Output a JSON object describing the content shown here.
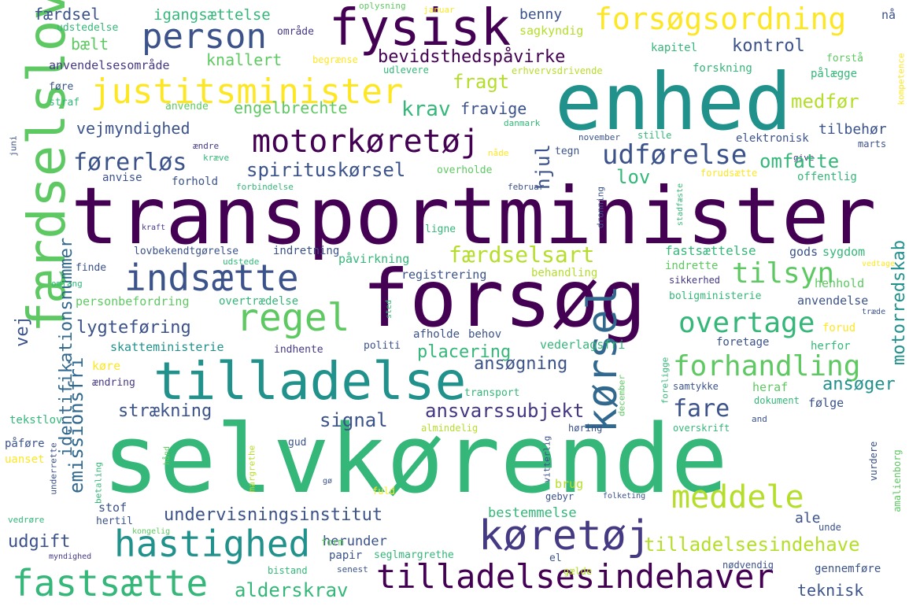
{
  "words": [
    {
      "text": "selvkørende",
      "color": "#35b779"
    },
    {
      "text": "transportminister",
      "color": "#440154"
    },
    {
      "text": "enhed",
      "color": "#21918c"
    },
    {
      "text": "forsøg",
      "color": "#440154"
    },
    {
      "text": "færdselslov",
      "color": "#5ec962"
    },
    {
      "text": "tilladelse",
      "color": "#21918c"
    },
    {
      "text": "fysisk",
      "color": "#440154"
    },
    {
      "text": "forsøgsordning",
      "color": "#fde725"
    },
    {
      "text": "person",
      "color": "#3b528b"
    },
    {
      "text": "justitsminister",
      "color": "#fde725"
    },
    {
      "text": "motorkøretøj",
      "color": "#440154"
    },
    {
      "text": "indsætte",
      "color": "#3b528b"
    },
    {
      "text": "regel",
      "color": "#5ec962"
    },
    {
      "text": "kørsel",
      "color": "#31688e"
    },
    {
      "text": "køretøj",
      "color": "#443983"
    },
    {
      "text": "tilladelsesindehaver",
      "color": "#440154"
    },
    {
      "text": "hastighed",
      "color": "#21918c"
    },
    {
      "text": "fastsætte",
      "color": "#35b779"
    },
    {
      "text": "meddele",
      "color": "#b5de2b"
    },
    {
      "text": "forhandling",
      "color": "#5ec962"
    },
    {
      "text": "overtage",
      "color": "#35b779"
    },
    {
      "text": "tilsyn",
      "color": "#5ec962"
    },
    {
      "text": "udførelse",
      "color": "#3b528b"
    },
    {
      "text": "færdselsart",
      "color": "#b5de2b"
    },
    {
      "text": "førerløs",
      "color": "#3b528b"
    },
    {
      "text": "spirituskørsel",
      "color": "#3b528b"
    },
    {
      "text": "undervisningsinstitut",
      "color": "#3b528b"
    },
    {
      "text": "tilladelsesindehave",
      "color": "#b5de2b"
    },
    {
      "text": "ansvarssubjekt",
      "color": "#443983"
    },
    {
      "text": "identifikationsnummer",
      "color": "#31688e"
    },
    {
      "text": "emissionsfri",
      "color": "#31688e"
    },
    {
      "text": "motorredskab",
      "color": "#21918c"
    },
    {
      "text": "bevidsthedspåvirke",
      "color": "#440154"
    },
    {
      "text": "færdsel",
      "color": "#3b528b"
    },
    {
      "text": "igangsættelse",
      "color": "#35b779"
    },
    {
      "text": "benny",
      "color": "#3b528b"
    },
    {
      "text": "sagkyndig",
      "color": "#b5de2b"
    },
    {
      "text": "udstedelse",
      "color": "#35b779"
    },
    {
      "text": "område",
      "color": "#443983"
    },
    {
      "text": "bælt",
      "color": "#5ec962"
    },
    {
      "text": "knallert",
      "color": "#5ec962"
    },
    {
      "text": "kontrol",
      "color": "#3b528b"
    },
    {
      "text": "kapitel",
      "color": "#35b779"
    },
    {
      "text": "anvendelsesområde",
      "color": "#443983"
    },
    {
      "text": "begrænse",
      "color": "#fde725"
    },
    {
      "text": "udlevere",
      "color": "#35b779"
    },
    {
      "text": "erhvervsdrivende",
      "color": "#b5de2b"
    },
    {
      "text": "forskning",
      "color": "#35b779"
    },
    {
      "text": "forstå",
      "color": "#5ec962"
    },
    {
      "text": "pålægge",
      "color": "#35b779"
    },
    {
      "text": "kompetence",
      "color": "#fde725"
    },
    {
      "text": "føre",
      "color": "#3b528b"
    },
    {
      "text": "straf",
      "color": "#35b779"
    },
    {
      "text": "anvende",
      "color": "#5ec962"
    },
    {
      "text": "fragt",
      "color": "#b5de2b"
    },
    {
      "text": "engelbrechte",
      "color": "#5ec962"
    },
    {
      "text": "krav",
      "color": "#35b779"
    },
    {
      "text": "fravige",
      "color": "#3b528b"
    },
    {
      "text": "medfør",
      "color": "#b5de2b"
    },
    {
      "text": "vejmyndighed",
      "color": "#3b528b"
    },
    {
      "text": "hjul",
      "color": "#3b528b"
    },
    {
      "text": "tilbehør",
      "color": "#3b528b"
    },
    {
      "text": "danmark",
      "color": "#35b779"
    },
    {
      "text": "november",
      "color": "#3b528b"
    },
    {
      "text": "stille",
      "color": "#35b779"
    },
    {
      "text": "marts",
      "color": "#3b528b"
    },
    {
      "text": "elektronisk",
      "color": "#3b528b"
    },
    {
      "text": "juni",
      "color": "#3b528b"
    },
    {
      "text": "ændre",
      "color": "#443983"
    },
    {
      "text": "tegn",
      "color": "#3b528b"
    },
    {
      "text": "nåde",
      "color": "#fde725"
    },
    {
      "text": "kræve",
      "color": "#35b779"
    },
    {
      "text": "give",
      "color": "#443983"
    },
    {
      "text": "omfatte",
      "color": "#35b779"
    },
    {
      "text": "lov",
      "color": "#35b779"
    },
    {
      "text": "overholde",
      "color": "#5ec962"
    },
    {
      "text": "forudsætte",
      "color": "#fde725"
    },
    {
      "text": "offentlig",
      "color": "#35b779"
    },
    {
      "text": "anvise",
      "color": "#3b528b"
    },
    {
      "text": "forhold",
      "color": "#3b528b"
    },
    {
      "text": "forbindelse",
      "color": "#35b779"
    },
    {
      "text": "februar",
      "color": "#3b528b"
    },
    {
      "text": "dronning",
      "color": "#3b528b"
    },
    {
      "text": "stadfæste",
      "color": "#35b779"
    },
    {
      "text": "kraft",
      "color": "#443983"
    },
    {
      "text": "ligne",
      "color": "#35b779"
    },
    {
      "text": "vej",
      "color": "#3b528b"
    },
    {
      "text": "lovbekendtgørelse",
      "color": "#3b528b"
    },
    {
      "text": "indretning",
      "color": "#3b528b"
    },
    {
      "text": "udstede",
      "color": "#35b779"
    },
    {
      "text": "påvirkning",
      "color": "#35b779"
    },
    {
      "text": "fastsættelse",
      "color": "#35b779"
    },
    {
      "text": "gods",
      "color": "#3b528b"
    },
    {
      "text": "sygdom",
      "color": "#35b779"
    },
    {
      "text": "indrette",
      "color": "#5ec962"
    },
    {
      "text": "vedtage",
      "color": "#fde725"
    },
    {
      "text": "finde",
      "color": "#3b528b"
    },
    {
      "text": "omfang",
      "color": "#35b779"
    },
    {
      "text": "registrering",
      "color": "#3b528b"
    },
    {
      "text": "behandling",
      "color": "#b5de2b"
    },
    {
      "text": "sikkerhed",
      "color": "#443983"
    },
    {
      "text": "henhold",
      "color": "#5ec962"
    },
    {
      "text": "personbefordring",
      "color": "#5ec962"
    },
    {
      "text": "overtrædelse",
      "color": "#35b779"
    },
    {
      "text": "boligministerie",
      "color": "#35b779"
    },
    {
      "text": "anvendelse",
      "color": "#3b528b"
    },
    {
      "text": "sted",
      "color": "#35b779"
    },
    {
      "text": "træde",
      "color": "#3b528b"
    },
    {
      "text": "lygteføring",
      "color": "#3b528b"
    },
    {
      "text": "afholde",
      "color": "#3b528b"
    },
    {
      "text": "behov",
      "color": "#3b528b"
    },
    {
      "text": "forud",
      "color": "#fde725"
    },
    {
      "text": "foretage",
      "color": "#3b528b"
    },
    {
      "text": "herfor",
      "color": "#35b779"
    },
    {
      "text": "skatteministerie",
      "color": "#21918c"
    },
    {
      "text": "indhente",
      "color": "#443983"
    },
    {
      "text": "politi",
      "color": "#3b528b"
    },
    {
      "text": "placering",
      "color": "#35b779"
    },
    {
      "text": "vederlagsfri",
      "color": "#35b779"
    },
    {
      "text": "køre",
      "color": "#fde725"
    },
    {
      "text": "ændring",
      "color": "#443983"
    },
    {
      "text": "ansøgning",
      "color": "#3b528b"
    },
    {
      "text": "transport",
      "color": "#35b779"
    },
    {
      "text": "foreligge",
      "color": "#35b779"
    },
    {
      "text": "samtykke",
      "color": "#3b528b"
    },
    {
      "text": "heraf",
      "color": "#5ec962"
    },
    {
      "text": "ansøger",
      "color": "#21918c"
    },
    {
      "text": "fare",
      "color": "#3b528b"
    },
    {
      "text": "dokument",
      "color": "#35b779"
    },
    {
      "text": "følge",
      "color": "#3b528b"
    },
    {
      "text": "strækning",
      "color": "#3b528b"
    },
    {
      "text": "signal",
      "color": "#3b528b"
    },
    {
      "text": "tekstlov",
      "color": "#35b779"
    },
    {
      "text": "påføre",
      "color": "#3b528b"
    },
    {
      "text": "uanset",
      "color": "#fde725"
    },
    {
      "text": "december",
      "color": "#5ec962"
    },
    {
      "text": "and",
      "color": "#3b528b"
    },
    {
      "text": "høring",
      "color": "#3b528b"
    },
    {
      "text": "almindelig",
      "color": "#b5de2b"
    },
    {
      "text": "overskrift",
      "color": "#35b779"
    },
    {
      "text": "gud",
      "color": "#3b528b"
    },
    {
      "text": "hånd",
      "color": "#5ec962"
    },
    {
      "text": "vitterlig",
      "color": "#3b528b"
    },
    {
      "text": "margrethe",
      "color": "#b5de2b"
    },
    {
      "text": "vurdere",
      "color": "#3b528b"
    },
    {
      "text": "amalienborg",
      "color": "#5ec962"
    },
    {
      "text": "underrette",
      "color": "#3b528b"
    },
    {
      "text": "betaling",
      "color": "#35b779"
    },
    {
      "text": "brug",
      "color": "#b5de2b"
    },
    {
      "text": "gø",
      "color": "#3b528b"
    },
    {
      "text": "fuld",
      "color": "#fde725"
    },
    {
      "text": "gebyr",
      "color": "#3b528b"
    },
    {
      "text": "folketing",
      "color": "#3b528b"
    },
    {
      "text": "stof",
      "color": "#3b528b"
    },
    {
      "text": "hertil",
      "color": "#3b528b"
    },
    {
      "text": "vedrøre",
      "color": "#35b779"
    },
    {
      "text": "kongelig",
      "color": "#5ec962"
    },
    {
      "text": "bestemmelse",
      "color": "#35b779"
    },
    {
      "text": "ale",
      "color": "#3b528b"
    },
    {
      "text": "unde",
      "color": "#3b528b"
    },
    {
      "text": "udgift",
      "color": "#3b528b"
    },
    {
      "text": "herunder",
      "color": "#3b528b"
    },
    {
      "text": "form",
      "color": "#5ec962"
    },
    {
      "text": "papir",
      "color": "#3b528b"
    },
    {
      "text": "seglmargrethe",
      "color": "#35b779"
    },
    {
      "text": "el",
      "color": "#3b528b"
    },
    {
      "text": "myndighed",
      "color": "#443983"
    },
    {
      "text": "bistand",
      "color": "#35b779"
    },
    {
      "text": "senest",
      "color": "#3b528b"
    },
    {
      "text": "gælde",
      "color": "#b5de2b"
    },
    {
      "text": "nødvendig",
      "color": "#3b528b"
    },
    {
      "text": "gennemføre",
      "color": "#3b528b"
    },
    {
      "text": "alderskrav",
      "color": "#35b779"
    },
    {
      "text": "teknisk",
      "color": "#3b528b"
    },
    {
      "text": "oplysning",
      "color": "#5ec962"
    },
    {
      "text": "januar",
      "color": "#fde725"
    },
    {
      "text": "nå",
      "color": "#3b528b"
    }
  ]
}
